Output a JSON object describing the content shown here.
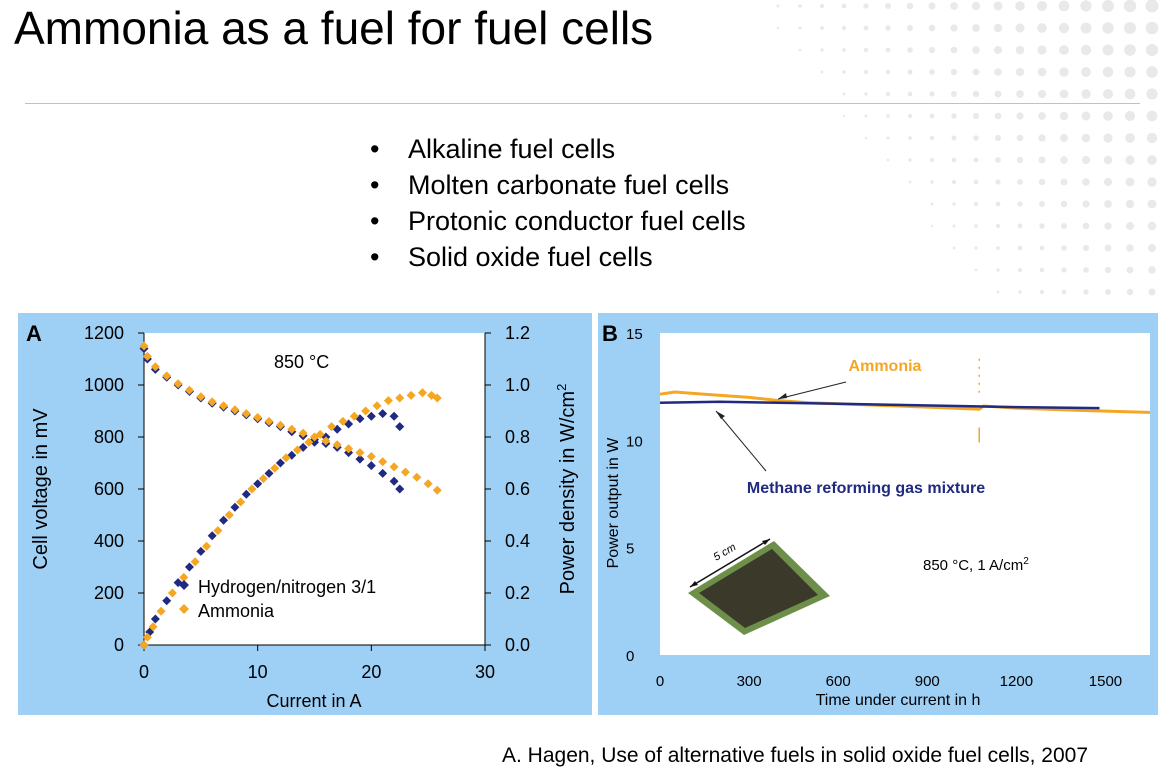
{
  "slide": {
    "title": "Ammonia as a fuel for fuel cells",
    "bullets": [
      "Alkaline fuel cells",
      "Molten carbonate fuel cells",
      "Protonic conductor fuel cells",
      "Solid oxide fuel cells"
    ],
    "bullet_glyph": "•",
    "citation": "A. Hagen, Use of alternative fuels in solid oxide fuel cells, 2007",
    "accent_color": "#f3b96a",
    "panel_color": "#9ecff5"
  },
  "chart_data": [
    {
      "type": "scatter",
      "panel_label": "A",
      "annotation": "850 °C",
      "xlabel": "Current in A",
      "ylabel_left": "Cell voltage in mV",
      "ylabel_right_main": "Power density in W/cm",
      "ylabel_right_sup": "2",
      "xlim": [
        0,
        30
      ],
      "ylim_left": [
        0,
        1200
      ],
      "ylim_right": [
        0.0,
        1.2
      ],
      "x_ticks": [
        "0",
        "10",
        "20",
        "30"
      ],
      "y_left_ticks": [
        "0",
        "200",
        "400",
        "600",
        "800",
        "1000",
        "1200"
      ],
      "y_right_ticks": [
        "0.0",
        "0.2",
        "0.4",
        "0.6",
        "0.8",
        "1.0",
        "1.2"
      ],
      "legend_position": "bottom-left",
      "series": [
        {
          "name": "Hydrogen/nitrogen 3/1",
          "color": "#1f2a80",
          "marker": "diamond",
          "voltage_mV": [
            [
              0,
              1140
            ],
            [
              0.3,
              1100
            ],
            [
              1,
              1060
            ],
            [
              2,
              1030
            ],
            [
              3,
              1000
            ],
            [
              4,
              975
            ],
            [
              5,
              950
            ],
            [
              6,
              930
            ],
            [
              7,
              915
            ],
            [
              8,
              900
            ],
            [
              9,
              885
            ],
            [
              10,
              870
            ],
            [
              11,
              855
            ],
            [
              12,
              840
            ],
            [
              13,
              820
            ],
            [
              14,
              805
            ],
            [
              15,
              790
            ],
            [
              16,
              775
            ],
            [
              17,
              760
            ],
            [
              18,
              740
            ],
            [
              19,
              715
            ],
            [
              20,
              690
            ],
            [
              21,
              660
            ],
            [
              22,
              630
            ],
            [
              22.5,
              600
            ]
          ],
          "power_W_cm2": [
            [
              0,
              0
            ],
            [
              0.5,
              0.05
            ],
            [
              1,
              0.1
            ],
            [
              2,
              0.17
            ],
            [
              3,
              0.24
            ],
            [
              4,
              0.3
            ],
            [
              5,
              0.36
            ],
            [
              6,
              0.42
            ],
            [
              7,
              0.48
            ],
            [
              8,
              0.53
            ],
            [
              9,
              0.58
            ],
            [
              10,
              0.62
            ],
            [
              11,
              0.66
            ],
            [
              12,
              0.7
            ],
            [
              13,
              0.73
            ],
            [
              14,
              0.76
            ],
            [
              15,
              0.78
            ],
            [
              16,
              0.8
            ],
            [
              17,
              0.83
            ],
            [
              18,
              0.85
            ],
            [
              19,
              0.87
            ],
            [
              20,
              0.88
            ],
            [
              21,
              0.89
            ],
            [
              22,
              0.88
            ],
            [
              22.5,
              0.84
            ]
          ]
        },
        {
          "name": "Ammonia",
          "color": "#f5a623",
          "marker": "diamond",
          "voltage_mV": [
            [
              0,
              1150
            ],
            [
              0.3,
              1110
            ],
            [
              1,
              1070
            ],
            [
              2,
              1035
            ],
            [
              3,
              1005
            ],
            [
              4,
              980
            ],
            [
              5,
              955
            ],
            [
              6,
              935
            ],
            [
              7,
              920
            ],
            [
              8,
              905
            ],
            [
              9,
              890
            ],
            [
              10,
              875
            ],
            [
              11,
              860
            ],
            [
              12,
              845
            ],
            [
              13,
              830
            ],
            [
              14,
              815
            ],
            [
              15,
              800
            ],
            [
              16,
              785
            ],
            [
              17,
              770
            ],
            [
              18,
              755
            ],
            [
              19,
              740
            ],
            [
              20,
              725
            ],
            [
              21,
              705
            ],
            [
              22,
              685
            ],
            [
              23,
              665
            ],
            [
              24,
              645
            ],
            [
              25,
              620
            ],
            [
              25.8,
              595
            ]
          ],
          "power_W_cm2": [
            [
              0,
              0
            ],
            [
              0.3,
              0.03
            ],
            [
              0.8,
              0.07
            ],
            [
              1.5,
              0.13
            ],
            [
              2.5,
              0.2
            ],
            [
              3.5,
              0.26
            ],
            [
              4.5,
              0.32
            ],
            [
              5.5,
              0.38
            ],
            [
              6.5,
              0.44
            ],
            [
              7.5,
              0.5
            ],
            [
              8.5,
              0.55
            ],
            [
              9.5,
              0.6
            ],
            [
              10.5,
              0.64
            ],
            [
              11.5,
              0.68
            ],
            [
              12.5,
              0.72
            ],
            [
              13.5,
              0.75
            ],
            [
              14.5,
              0.78
            ],
            [
              15.5,
              0.81
            ],
            [
              16.5,
              0.84
            ],
            [
              17.5,
              0.86
            ],
            [
              18.5,
              0.88
            ],
            [
              19.5,
              0.9
            ],
            [
              20.5,
              0.92
            ],
            [
              21.5,
              0.94
            ],
            [
              22.5,
              0.95
            ],
            [
              23.5,
              0.96
            ],
            [
              24.5,
              0.97
            ],
            [
              25.3,
              0.96
            ],
            [
              25.8,
              0.95
            ]
          ]
        }
      ]
    },
    {
      "type": "line",
      "panel_label": "B",
      "annotation_main": "850 °C, 1 A/cm",
      "annotation_sup": "2",
      "xlabel": "Time under current in h",
      "ylabel": "Power output in W",
      "xlim": [
        0,
        1650
      ],
      "ylim": [
        0,
        15
      ],
      "x_ticks": [
        "0",
        "300",
        "600",
        "900",
        "1200",
        "1500"
      ],
      "y_ticks": [
        "0",
        "5",
        "10",
        "15"
      ],
      "inset_label": "5 cm",
      "series": [
        {
          "label": "Ammonia",
          "color": "#f5a623",
          "points": [
            [
              0,
              12.15
            ],
            [
              50,
              12.25
            ],
            [
              150,
              12.15
            ],
            [
              300,
              12.0
            ],
            [
              400,
              11.85
            ],
            [
              500,
              11.75
            ],
            [
              700,
              11.65
            ],
            [
              900,
              11.55
            ],
            [
              1075,
              11.45
            ],
            [
              1090,
              11.6
            ],
            [
              1200,
              11.5
            ],
            [
              1400,
              11.4
            ],
            [
              1650,
              11.3
            ]
          ]
        },
        {
          "label": "Methane reforming gas mixture",
          "color": "#1f2a80",
          "points": [
            [
              0,
              11.75
            ],
            [
              200,
              11.8
            ],
            [
              400,
              11.75
            ],
            [
              600,
              11.7
            ],
            [
              800,
              11.65
            ],
            [
              1000,
              11.6
            ],
            [
              1200,
              11.55
            ],
            [
              1480,
              11.5
            ]
          ]
        }
      ]
    }
  ]
}
